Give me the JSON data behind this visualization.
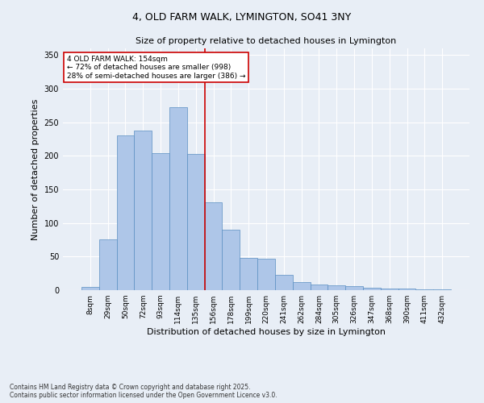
{
  "title": "4, OLD FARM WALK, LYMINGTON, SO41 3NY",
  "subtitle": "Size of property relative to detached houses in Lymington",
  "xlabel": "Distribution of detached houses by size in Lymington",
  "ylabel": "Number of detached properties",
  "categories": [
    "8sqm",
    "29sqm",
    "50sqm",
    "72sqm",
    "93sqm",
    "114sqm",
    "135sqm",
    "156sqm",
    "178sqm",
    "199sqm",
    "220sqm",
    "241sqm",
    "262sqm",
    "284sqm",
    "305sqm",
    "326sqm",
    "347sqm",
    "368sqm",
    "390sqm",
    "411sqm",
    "432sqm"
  ],
  "values": [
    5,
    76,
    230,
    238,
    204,
    272,
    203,
    131,
    90,
    48,
    47,
    23,
    12,
    9,
    7,
    6,
    4,
    2,
    3,
    1,
    1
  ],
  "bar_color": "#aec6e8",
  "bar_edge_color": "#5a8fc2",
  "vline_index": 7,
  "vline_color": "#cc0000",
  "annotation_text": "4 OLD FARM WALK: 154sqm\n← 72% of detached houses are smaller (998)\n28% of semi-detached houses are larger (386) →",
  "annotation_box_color": "#ffffff",
  "annotation_box_edge_color": "#cc0000",
  "ylim": [
    0,
    360
  ],
  "yticks": [
    0,
    50,
    100,
    150,
    200,
    250,
    300,
    350
  ],
  "background_color": "#e8eef6",
  "footer_line1": "Contains HM Land Registry data © Crown copyright and database right 2025.",
  "footer_line2": "Contains public sector information licensed under the Open Government Licence v3.0."
}
